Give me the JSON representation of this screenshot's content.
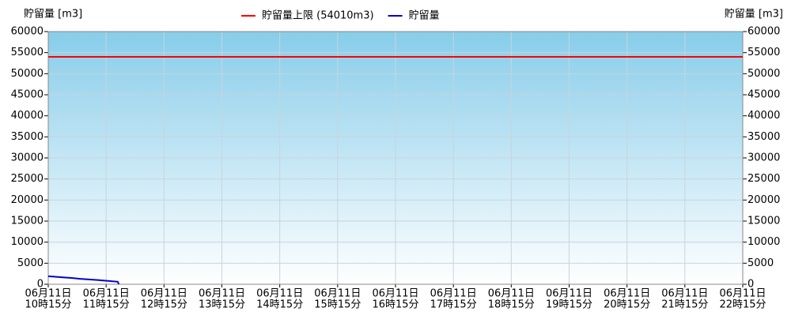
{
  "chart_data": {
    "type": "line",
    "y_label": "貯留量 [m3]",
    "y2_label": "貯留量 [m3]",
    "xlim": [
      10.25,
      22.25
    ],
    "xticks": [
      {
        "value": 10.25,
        "label": [
          "06月11日",
          "10時15分"
        ]
      },
      {
        "value": 11.25,
        "label": [
          "06月11日",
          "11時15分"
        ]
      },
      {
        "value": 12.25,
        "label": [
          "06月11日",
          "12時15分"
        ]
      },
      {
        "value": 13.25,
        "label": [
          "06月11日",
          "13時15分"
        ]
      },
      {
        "value": 14.25,
        "label": [
          "06月11日",
          "14時15分"
        ]
      },
      {
        "value": 15.25,
        "label": [
          "06月11日",
          "15時15分"
        ]
      },
      {
        "value": 16.25,
        "label": [
          "06月11日",
          "16時15分"
        ]
      },
      {
        "value": 17.25,
        "label": [
          "06月11日",
          "17時15分"
        ]
      },
      {
        "value": 18.25,
        "label": [
          "06月11日",
          "18時15分"
        ]
      },
      {
        "value": 19.25,
        "label": [
          "06月11日",
          "19時15分"
        ]
      },
      {
        "value": 20.25,
        "label": [
          "06月11日",
          "20時15分"
        ]
      },
      {
        "value": 21.25,
        "label": [
          "06月11日",
          "21時15分"
        ]
      },
      {
        "value": 22.25,
        "label": [
          "06月11日",
          "22時15分"
        ]
      }
    ],
    "ylim": [
      0,
      60000
    ],
    "yticks": [
      0,
      5000,
      10000,
      15000,
      20000,
      25000,
      30000,
      35000,
      40000,
      45000,
      50000,
      55000,
      60000
    ],
    "y2lim": [
      0,
      60000
    ],
    "y2ticks": [
      0,
      5000,
      10000,
      15000,
      20000,
      25000,
      30000,
      35000,
      40000,
      45000,
      50000,
      55000,
      60000
    ],
    "grid": true,
    "reference_lines": [
      {
        "name": "貯留量上限 (54010m3)",
        "color": "#ff0000",
        "value": 54010
      }
    ],
    "series": [
      {
        "name": "貯留量",
        "color": "#0000cc",
        "x": [
          10.25,
          10.35,
          10.5,
          10.65,
          10.8,
          10.95,
          11.1,
          11.2,
          11.45,
          11.47
        ],
        "values": [
          1900,
          1800,
          1650,
          1500,
          1300,
          1150,
          1000,
          900,
          600,
          0
        ]
      }
    ]
  }
}
